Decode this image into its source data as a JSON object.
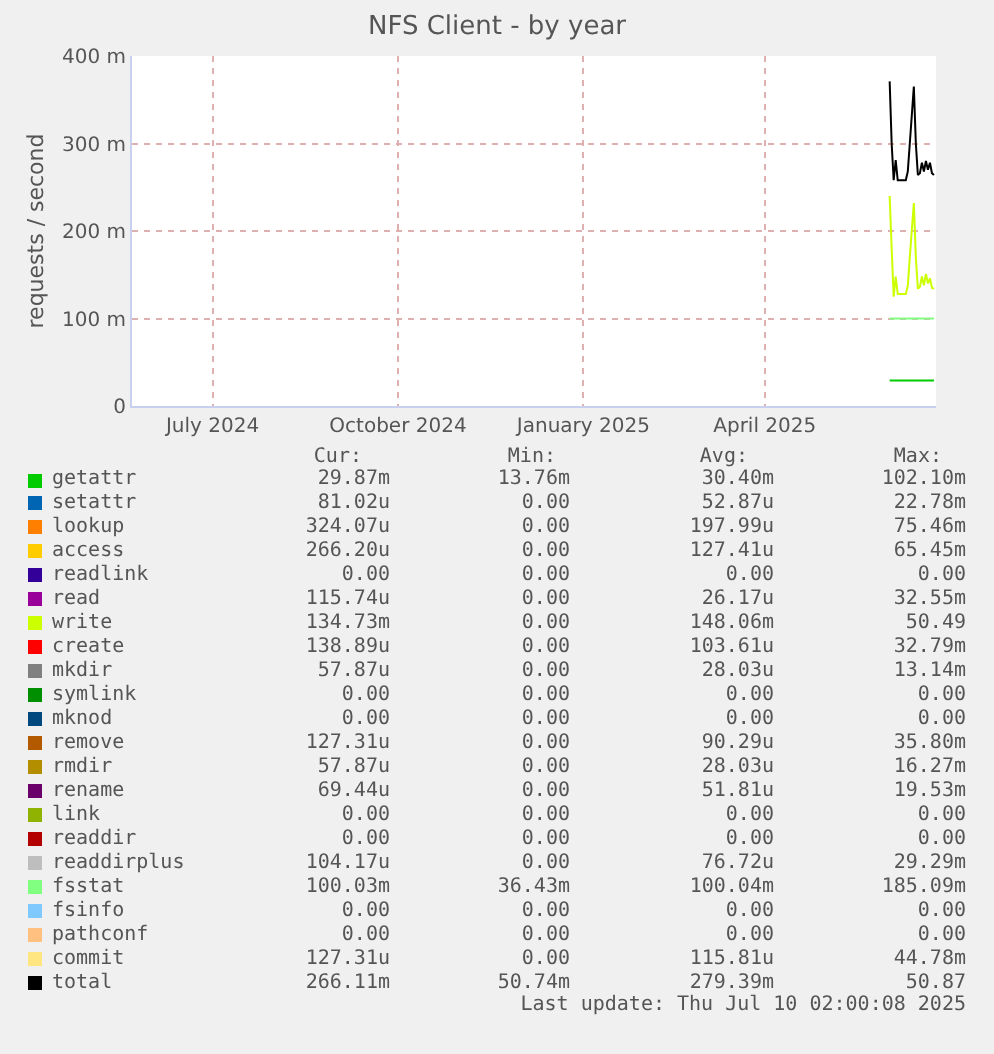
{
  "chart_data": {
    "type": "line",
    "title": "NFS Client - by year",
    "ylabel": "requests / second",
    "x": [
      "2025-06-17",
      "2025-06-18",
      "2025-06-19",
      "2025-06-20",
      "2025-06-21",
      "2025-06-25",
      "2025-06-26",
      "2025-06-27",
      "2025-06-29",
      "2025-06-30",
      "2025-07-01",
      "2025-07-02",
      "2025-07-03",
      "2025-07-04",
      "2025-07-05",
      "2025-07-06",
      "2025-07-07",
      "2025-07-08",
      "2025-07-09"
    ],
    "xlim": [
      "2024-06-06",
      "2025-07-10"
    ],
    "xticks": [
      {
        "value": "2024-07-16",
        "label": "July 2024"
      },
      {
        "value": "2024-10-16",
        "label": "October 2024"
      },
      {
        "value": "2025-01-16",
        "label": "January 2025"
      },
      {
        "value": "2025-04-16",
        "label": "April 2025"
      }
    ],
    "ylim": [
      0,
      400
    ],
    "yticks": [
      0,
      {
        "value": 100,
        "label": "100 m"
      },
      {
        "value": 200,
        "label": "200 m"
      },
      {
        "value": 300,
        "label": "300 m"
      },
      {
        "value": 400,
        "label": "400 m"
      }
    ],
    "grid": true,
    "legend": "bottom",
    "series": [
      {
        "name": "getattr",
        "color": "#00cc00",
        "values": [
          29,
          29,
          29,
          29,
          29,
          29,
          29,
          29,
          29,
          29,
          29,
          29,
          29,
          29,
          29,
          29,
          29,
          29,
          29
        ]
      },
      {
        "name": "setattr",
        "color": "#0066b3",
        "values": [
          null,
          null,
          null,
          null,
          null,
          null,
          null,
          null,
          null,
          null,
          null,
          null,
          null,
          null,
          null,
          null,
          null,
          null,
          null
        ]
      },
      {
        "name": "lookup",
        "color": "#ff8000",
        "values": [
          null,
          null,
          null,
          null,
          null,
          null,
          null,
          null,
          null,
          null,
          null,
          null,
          null,
          null,
          null,
          null,
          null,
          null,
          null
        ]
      },
      {
        "name": "access",
        "color": "#ffcc00",
        "values": [
          null,
          null,
          null,
          null,
          null,
          null,
          null,
          null,
          null,
          null,
          null,
          null,
          null,
          null,
          null,
          null,
          null,
          null,
          null
        ]
      },
      {
        "name": "readlink",
        "color": "#330099",
        "values": [
          null,
          null,
          null,
          null,
          null,
          null,
          null,
          null,
          null,
          null,
          null,
          null,
          null,
          null,
          null,
          null,
          null,
          null,
          null
        ]
      },
      {
        "name": "read",
        "color": "#990099",
        "values": [
          null,
          null,
          null,
          null,
          null,
          null,
          null,
          null,
          null,
          null,
          null,
          null,
          null,
          null,
          null,
          null,
          null,
          null,
          null
        ]
      },
      {
        "name": "write",
        "color": "#ccff00",
        "values": [
          240,
          180,
          125,
          148,
          128,
          128,
          137,
          170,
          232,
          170,
          134,
          136,
          148,
          138,
          151,
          140,
          146,
          135,
          134
        ]
      },
      {
        "name": "create",
        "color": "#ff0000",
        "values": [
          null,
          null,
          null,
          null,
          null,
          null,
          null,
          null,
          null,
          null,
          null,
          null,
          null,
          null,
          null,
          null,
          null,
          null,
          null
        ]
      },
      {
        "name": "mkdir",
        "color": "#808080",
        "values": [
          null,
          null,
          null,
          null,
          null,
          null,
          null,
          null,
          null,
          null,
          null,
          null,
          null,
          null,
          null,
          null,
          null,
          null,
          null
        ]
      },
      {
        "name": "symlink",
        "color": "#008f00",
        "values": [
          null,
          null,
          null,
          null,
          null,
          null,
          null,
          null,
          null,
          null,
          null,
          null,
          null,
          null,
          null,
          null,
          null,
          null,
          null
        ]
      },
      {
        "name": "mknod",
        "color": "#00487d",
        "values": [
          null,
          null,
          null,
          null,
          null,
          null,
          null,
          null,
          null,
          null,
          null,
          null,
          null,
          null,
          null,
          null,
          null,
          null,
          null
        ]
      },
      {
        "name": "remove",
        "color": "#b35a00",
        "values": [
          null,
          null,
          null,
          null,
          null,
          null,
          null,
          null,
          null,
          null,
          null,
          null,
          null,
          null,
          null,
          null,
          null,
          null,
          null
        ]
      },
      {
        "name": "rmdir",
        "color": "#b38f00",
        "values": [
          null,
          null,
          null,
          null,
          null,
          null,
          null,
          null,
          null,
          null,
          null,
          null,
          null,
          null,
          null,
          null,
          null,
          null,
          null
        ]
      },
      {
        "name": "rename",
        "color": "#6b006b",
        "values": [
          null,
          null,
          null,
          null,
          null,
          null,
          null,
          null,
          null,
          null,
          null,
          null,
          null,
          null,
          null,
          null,
          null,
          null,
          null
        ]
      },
      {
        "name": "link",
        "color": "#8fb300",
        "values": [
          null,
          null,
          null,
          null,
          null,
          null,
          null,
          null,
          null,
          null,
          null,
          null,
          null,
          null,
          null,
          null,
          null,
          null,
          null
        ]
      },
      {
        "name": "readdir",
        "color": "#b30000",
        "values": [
          null,
          null,
          null,
          null,
          null,
          null,
          null,
          null,
          null,
          null,
          null,
          null,
          null,
          null,
          null,
          null,
          null,
          null,
          null
        ]
      },
      {
        "name": "readdirplus",
        "color": "#bebebe",
        "values": [
          null,
          null,
          null,
          null,
          null,
          null,
          null,
          null,
          null,
          null,
          null,
          null,
          null,
          null,
          null,
          null,
          null,
          null,
          null
        ]
      },
      {
        "name": "fsstat",
        "color": "#80ff80",
        "values": [
          100,
          100,
          100,
          100,
          100,
          100,
          100,
          100,
          100,
          100,
          100,
          100,
          100,
          100,
          100,
          100,
          100,
          100,
          100
        ]
      },
      {
        "name": "fsinfo",
        "color": "#80c9ff",
        "values": [
          null,
          null,
          null,
          null,
          null,
          null,
          null,
          null,
          null,
          null,
          null,
          null,
          null,
          null,
          null,
          null,
          null,
          null,
          null
        ]
      },
      {
        "name": "pathconf",
        "color": "#ffc080",
        "values": [
          null,
          null,
          null,
          null,
          null,
          null,
          null,
          null,
          null,
          null,
          null,
          null,
          null,
          null,
          null,
          null,
          null,
          null,
          null
        ]
      },
      {
        "name": "commit",
        "color": "#ffe680",
        "values": [
          null,
          null,
          null,
          null,
          null,
          null,
          null,
          null,
          null,
          null,
          null,
          null,
          null,
          null,
          null,
          null,
          null,
          null,
          null
        ]
      },
      {
        "name": "total",
        "color": "#000000",
        "values": [
          371,
          300,
          258,
          281,
          258,
          258,
          268,
          300,
          365,
          300,
          264,
          266,
          278,
          268,
          280,
          270,
          278,
          266,
          264
        ]
      }
    ],
    "annotations": [
      "Cur:",
      "Min:",
      "Avg:",
      "Max:",
      "29.87m",
      "13.76m",
      "30.40m",
      "102.10m",
      "81.02u",
      "0.00",
      "52.87u",
      "22.78m",
      "324.07u",
      "0.00",
      "197.99u",
      "75.46m",
      "266.20u",
      "0.00",
      "127.41u",
      "65.45m",
      "0.00",
      "0.00",
      "0.00",
      "0.00",
      "115.74u",
      "0.00",
      "26.17u",
      "32.55m",
      "134.73m",
      "0.00",
      "148.06m",
      "50.49",
      "138.89u",
      "0.00",
      "103.61u",
      "32.79m",
      "57.87u",
      "0.00",
      "28.03u",
      "13.14m",
      "0.00",
      "0.00",
      "0.00",
      "0.00",
      "0.00",
      "0.00",
      "0.00",
      "0.00",
      "127.31u",
      "0.00",
      "90.29u",
      "35.80m",
      "57.87u",
      "0.00",
      "28.03u",
      "16.27m",
      "69.44u",
      "0.00",
      "51.81u",
      "19.53m",
      "0.00",
      "0.00",
      "0.00",
      "0.00",
      "0.00",
      "0.00",
      "0.00",
      "0.00",
      "104.17u",
      "0.00",
      "76.72u",
      "29.29m",
      "100.03m",
      "36.43m",
      "100.04m",
      "185.09m",
      "0.00",
      "0.00",
      "0.00",
      "0.00",
      "0.00",
      "0.00",
      "0.00",
      "0.00",
      "127.31u",
      "0.00",
      "115.81u",
      "44.78m",
      "266.11m",
      "50.74m",
      "279.39m",
      "50.87",
      "Last update:  Thu Jul 10 02:00:08 2025"
    ]
  }
}
